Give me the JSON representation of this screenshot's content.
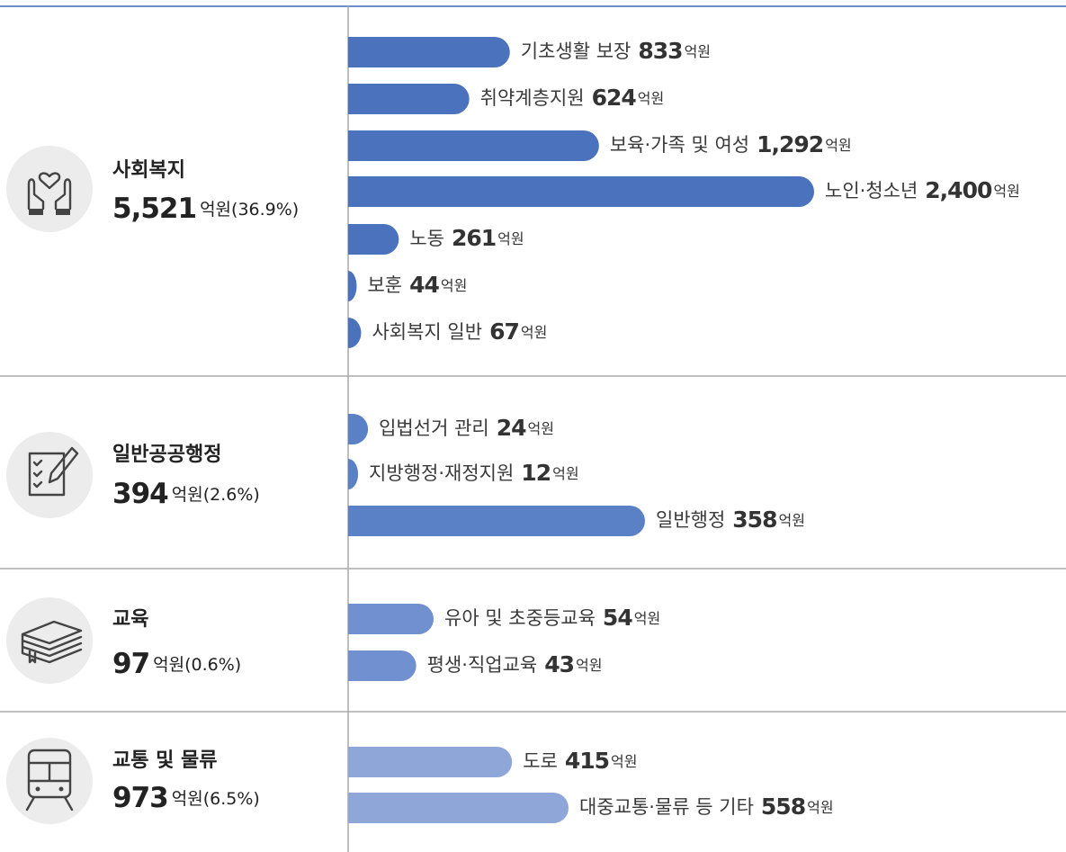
{
  "unit": "억원",
  "groups": [
    {
      "title": "사회복지",
      "total": "5,521",
      "share": "(36.9%)",
      "items": [
        {
          "name": "기초생활 보장",
          "value": 833
        },
        {
          "name": "취약계층지원",
          "value": 624
        },
        {
          "name": "보육·가족 및 여성",
          "value": 1292,
          "value_label": "1,292"
        },
        {
          "name": "노인·청소년",
          "value": 2400,
          "value_label": "2,400"
        },
        {
          "name": "노동",
          "value": 261
        },
        {
          "name": "보훈",
          "value": 44
        },
        {
          "name": "사회복지 일반",
          "value": 67
        }
      ]
    },
    {
      "title": "일반공공행정",
      "total": "394",
      "share": "(2.6%)",
      "items": [
        {
          "name": "입법선거 관리",
          "value": 24
        },
        {
          "name": "지방행정·재정지원",
          "value": 12
        },
        {
          "name": "일반행정",
          "value": 358
        }
      ]
    },
    {
      "title": "교육",
      "total": "97",
      "share": "(0.6%)",
      "items": [
        {
          "name": "유아 및 초중등교육",
          "value": 54
        },
        {
          "name": "평생·직업교육",
          "value": 43
        }
      ]
    },
    {
      "title": "교통 및 물류",
      "total": "973",
      "share": "(6.5%)",
      "items": [
        {
          "name": "도로",
          "value": 415
        },
        {
          "name": "대중교통·물류 등 기타",
          "value": 558
        }
      ]
    }
  ]
}
